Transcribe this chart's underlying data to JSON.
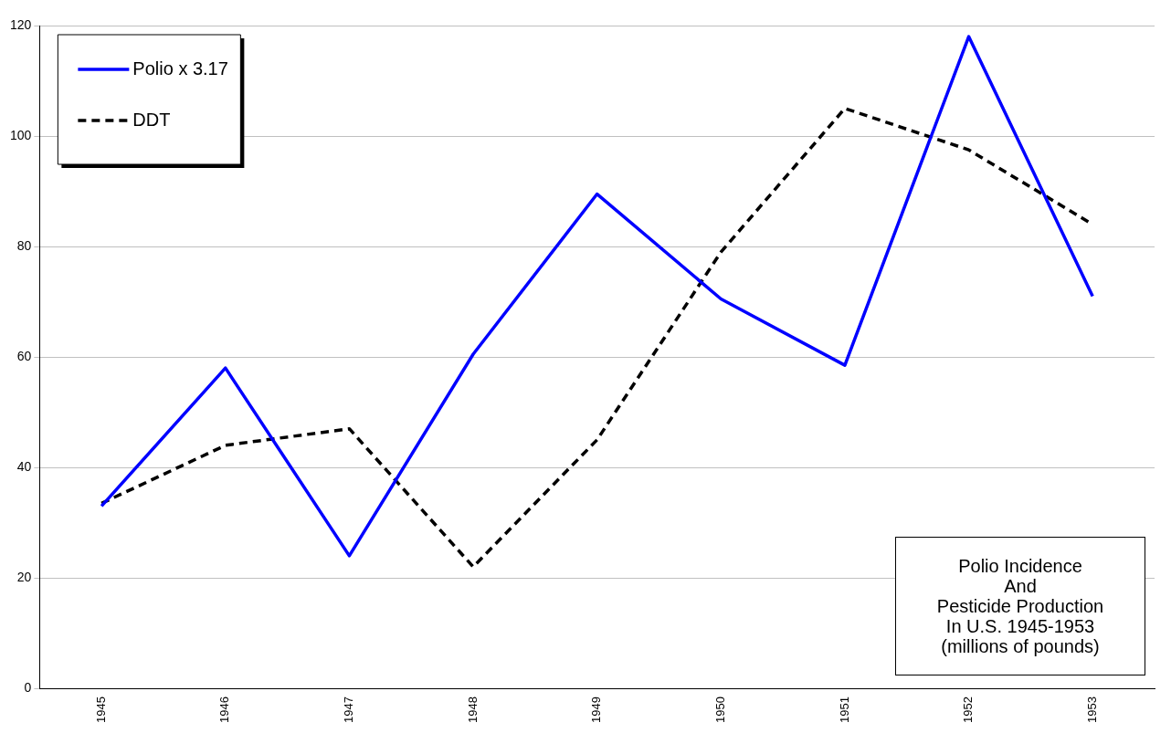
{
  "chart_data": {
    "type": "line",
    "title": "Polio Incidence\nAnd\nPesticide Production\nIn U.S. 1945-1953\n(millions of pounds)",
    "categories": [
      "1945",
      "1946",
      "1947",
      "1948",
      "1949",
      "1950",
      "1951",
      "1952",
      "1953"
    ],
    "series": [
      {
        "name": "Polio x 3.17",
        "color": "#0000ff",
        "line_style": "solid",
        "values": [
          33,
          58,
          24,
          60.5,
          89.5,
          70.5,
          58.5,
          118,
          71
        ]
      },
      {
        "name": "DDT",
        "color": "#000000",
        "line_style": "dashed",
        "values": [
          33.5,
          44,
          47,
          22,
          45,
          79,
          105,
          97.5,
          84
        ]
      }
    ],
    "ylim": [
      0,
      120
    ],
    "yticks": [
      0,
      20,
      40,
      60,
      80,
      100,
      120
    ],
    "grid": "y",
    "legend": "top left",
    "marker": "none"
  }
}
